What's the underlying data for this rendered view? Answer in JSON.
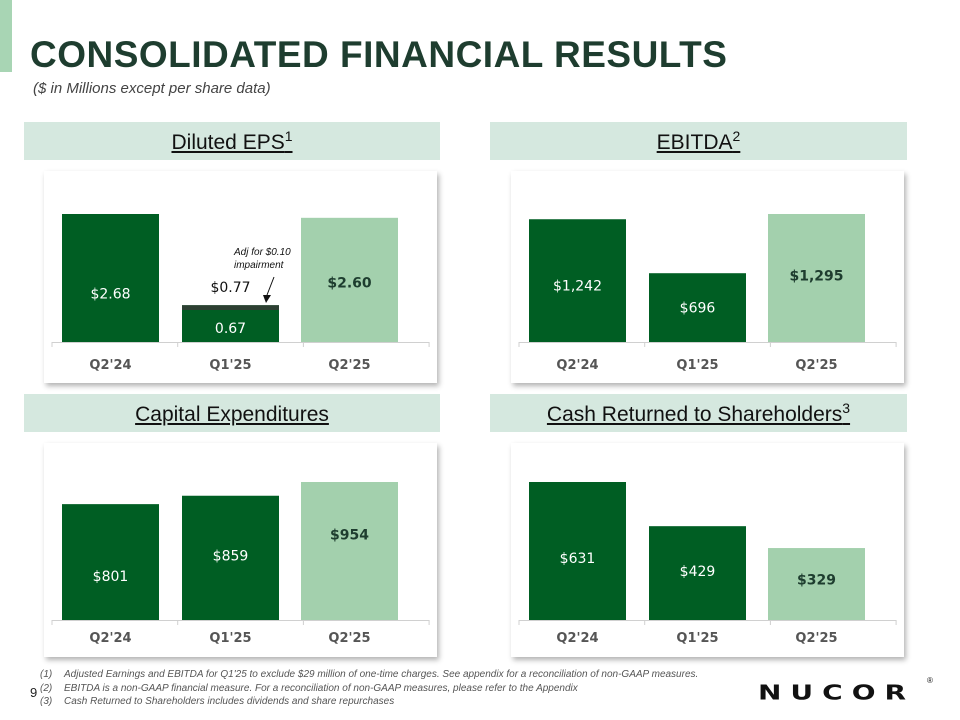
{
  "page": {
    "title": "CONSOLIDATED FINANCIAL RESULTS",
    "subtitle": "($ in Millions except per share data)",
    "page_number": "9",
    "logo_text": "NUCOR",
    "logo_mark": "®"
  },
  "colors": {
    "dark_green": "#005e23",
    "light_green": "#a3d0ad",
    "accent_bar": "#a8d5b4",
    "header_bg": "#d5e8df",
    "title_color": "#1e3d2f",
    "eps_cap": "#2d3f32"
  },
  "panels": [
    {
      "title": "Diluted EPS",
      "sup": "1"
    },
    {
      "title": "EBITDA",
      "sup": "2"
    },
    {
      "title": "Capital Expenditures",
      "sup": ""
    },
    {
      "title": "Cash Returned to Shareholders",
      "sup": "3"
    }
  ],
  "chart_data": [
    {
      "type": "bar",
      "title": "Diluted EPS",
      "categories": [
        "Q2'24",
        "Q1'25",
        "Q2'25"
      ],
      "values": [
        2.68,
        0.77,
        2.6
      ],
      "adjusted_component": 0.67,
      "adjustment": 0.1,
      "data_labels": [
        "$2.68",
        "$0.77",
        "$2.60"
      ],
      "adjusted_label": "0.67",
      "annotation": [
        "Adj for $0.10",
        "impairment"
      ],
      "colors": [
        "#005e23",
        "#005e23",
        "#a3d0ad"
      ],
      "ylim": [
        0,
        2.68
      ]
    },
    {
      "type": "bar",
      "title": "EBITDA",
      "categories": [
        "Q2'24",
        "Q1'25",
        "Q2'25"
      ],
      "values": [
        1242,
        696,
        1295
      ],
      "data_labels": [
        "$1,242",
        "$696",
        "$1,295"
      ],
      "colors": [
        "#005e23",
        "#005e23",
        "#a3d0ad"
      ],
      "ylim": [
        0,
        1295
      ]
    },
    {
      "type": "bar",
      "title": "Capital Expenditures",
      "categories": [
        "Q2'24",
        "Q1'25",
        "Q2'25"
      ],
      "values": [
        801,
        859,
        954
      ],
      "data_labels": [
        "$801",
        "$859",
        "$954"
      ],
      "colors": [
        "#005e23",
        "#005e23",
        "#a3d0ad"
      ],
      "ylim": [
        0,
        954
      ]
    },
    {
      "type": "bar",
      "title": "Cash Returned to Shareholders",
      "categories": [
        "Q2'24",
        "Q1'25",
        "Q2'25"
      ],
      "values": [
        631,
        429,
        329
      ],
      "data_labels": [
        "$631",
        "$429",
        "$329"
      ],
      "colors": [
        "#005e23",
        "#005e23",
        "#a3d0ad"
      ],
      "ylim": [
        0,
        631
      ]
    }
  ],
  "footnotes": [
    {
      "num": "(1)",
      "text": "Adjusted Earnings and EBITDA for Q1'25 to exclude $29 million of one-time charges. See appendix for a reconciliation of non-GAAP measures."
    },
    {
      "num": "(2)",
      "text": "EBITDA is a non-GAAP financial measure. For a reconciliation of non-GAAP measures, please refer to the Appendix"
    },
    {
      "num": "(3)",
      "text": "Cash Returned to Shareholders includes dividends and share repurchases"
    }
  ]
}
